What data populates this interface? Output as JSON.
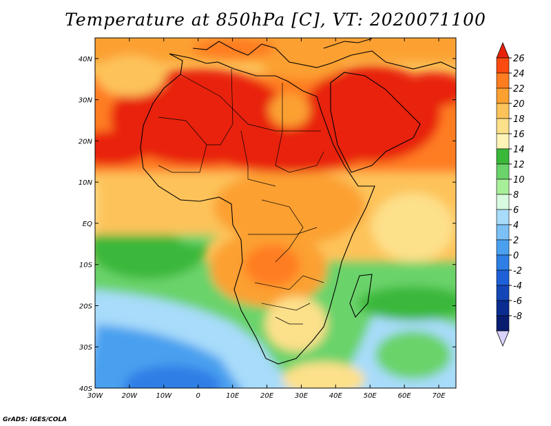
{
  "title": "Temperature at 850hPa [C], VT: 2020071100",
  "credit": "GrADS: IGES/COLA",
  "map": {
    "lat_labels": [
      "40N",
      "30N",
      "20N",
      "10N",
      "EQ",
      "10S",
      "20S",
      "30S",
      "40S"
    ],
    "lat_values": [
      40,
      30,
      20,
      10,
      0,
      -10,
      -20,
      -30,
      -40
    ],
    "lon_labels": [
      "30W",
      "20W",
      "10W",
      "0",
      "10E",
      "20E",
      "30E",
      "40E",
      "50E",
      "60E",
      "70E"
    ],
    "lon_values": [
      -30,
      -20,
      -10,
      0,
      10,
      20,
      30,
      40,
      50,
      60,
      70
    ],
    "lat_range": [
      -40,
      45
    ],
    "lon_range": [
      -30,
      75
    ]
  },
  "colorbar": {
    "labels": [
      "26",
      "24",
      "22",
      "20",
      "18",
      "16",
      "14",
      "12",
      "10",
      "8",
      "6",
      "4",
      "2",
      "0",
      "-2",
      "-4",
      "-6",
      "-8"
    ],
    "colors": [
      "#e8220a",
      "#ff4a10",
      "#ff7d20",
      "#fca030",
      "#fdc35a",
      "#fde08a",
      "#fff4b8",
      "#3ab83a",
      "#6ad36a",
      "#a8ef9a",
      "#d8fadf",
      "#a8dcfa",
      "#7cc0f5",
      "#4aa0ef",
      "#2e7ee6",
      "#1e60d8",
      "#1446b8",
      "#0a2c90",
      "#081c70"
    ],
    "min_arrow_color": "#d9d2fb"
  }
}
